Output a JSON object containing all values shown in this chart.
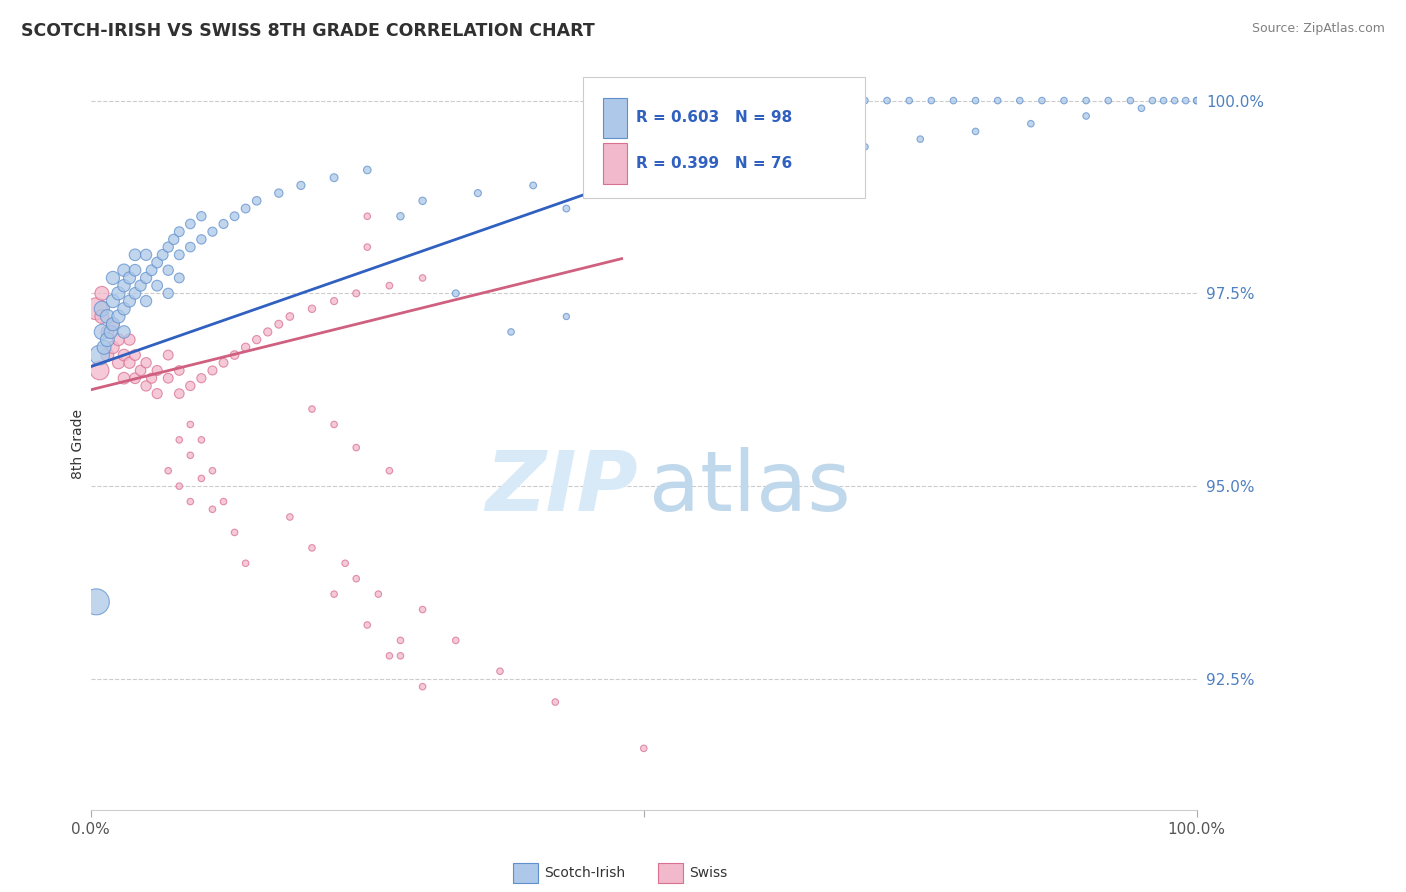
{
  "title": "SCOTCH-IRISH VS SWISS 8TH GRADE CORRELATION CHART",
  "source": "Source: ZipAtlas.com",
  "ylabel": "8th Grade",
  "xlim": [
    0.0,
    1.0
  ],
  "ylim": [
    0.908,
    1.003
  ],
  "yticks": [
    0.925,
    0.95,
    0.975,
    1.0
  ],
  "ytick_labels": [
    "92.5%",
    "95.0%",
    "97.5%",
    "100.0%"
  ],
  "scotch_irish_R": 0.603,
  "scotch_irish_N": 98,
  "swiss_R": 0.399,
  "swiss_N": 76,
  "scotch_irish_color": "#adc8e8",
  "swiss_color": "#f2b8cb",
  "scotch_irish_edge_color": "#6090cc",
  "swiss_edge_color": "#d87090",
  "scotch_irish_line_color": "#3060c0",
  "swiss_line_color": "#d06080",
  "background_color": "#ffffff",
  "grid_color": "#cccccc",
  "title_color": "#303030",
  "tick_color": "#5080c0",
  "source_color": "#808080",
  "legend_text_color": "#3060c0",
  "watermark_color1": "#d8eaf8",
  "watermark_color2": "#c0d8ec",
  "si_x": [
    0.005,
    0.008,
    0.01,
    0.01,
    0.012,
    0.015,
    0.015,
    0.018,
    0.02,
    0.02,
    0.02,
    0.025,
    0.025,
    0.03,
    0.03,
    0.03,
    0.03,
    0.035,
    0.035,
    0.04,
    0.04,
    0.04,
    0.045,
    0.05,
    0.05,
    0.05,
    0.055,
    0.06,
    0.06,
    0.065,
    0.07,
    0.07,
    0.07,
    0.075,
    0.08,
    0.08,
    0.08,
    0.09,
    0.09,
    0.1,
    0.1,
    0.11,
    0.12,
    0.13,
    0.14,
    0.15,
    0.17,
    0.19,
    0.22,
    0.25,
    0.28,
    0.33,
    0.38,
    0.43,
    0.3,
    0.35,
    0.4,
    0.5,
    0.55,
    0.6,
    0.65,
    0.7,
    0.75,
    0.8,
    0.85,
    0.9,
    0.95,
    0.97,
    0.99,
    1.0,
    0.5,
    0.52,
    0.54,
    0.56,
    0.58,
    0.6,
    0.62,
    0.64,
    0.66,
    0.68,
    0.7,
    0.72,
    0.74,
    0.76,
    0.78,
    0.8,
    0.82,
    0.84,
    0.86,
    0.88,
    0.9,
    0.92,
    0.94,
    0.96,
    0.98,
    1.0,
    0.43,
    0.46
  ],
  "si_y": [
    0.935,
    0.967,
    0.97,
    0.973,
    0.968,
    0.969,
    0.972,
    0.97,
    0.971,
    0.974,
    0.977,
    0.972,
    0.975,
    0.97,
    0.973,
    0.976,
    0.978,
    0.974,
    0.977,
    0.975,
    0.978,
    0.98,
    0.976,
    0.977,
    0.98,
    0.974,
    0.978,
    0.979,
    0.976,
    0.98,
    0.978,
    0.981,
    0.975,
    0.982,
    0.98,
    0.977,
    0.983,
    0.981,
    0.984,
    0.982,
    0.985,
    0.983,
    0.984,
    0.985,
    0.986,
    0.987,
    0.988,
    0.989,
    0.99,
    0.991,
    0.985,
    0.975,
    0.97,
    0.972,
    0.987,
    0.988,
    0.989,
    0.99,
    0.991,
    0.992,
    0.993,
    0.994,
    0.995,
    0.996,
    0.997,
    0.998,
    0.999,
    1.0,
    1.0,
    1.0,
    1.0,
    1.0,
    1.0,
    1.0,
    1.0,
    1.0,
    1.0,
    1.0,
    1.0,
    1.0,
    1.0,
    1.0,
    1.0,
    1.0,
    1.0,
    1.0,
    1.0,
    1.0,
    1.0,
    1.0,
    1.0,
    1.0,
    1.0,
    1.0,
    1.0,
    1.0,
    0.986,
    0.988
  ],
  "si_sizes": [
    350,
    200,
    120,
    120,
    100,
    100,
    100,
    90,
    90,
    90,
    90,
    90,
    90,
    80,
    80,
    80,
    80,
    75,
    75,
    70,
    70,
    70,
    65,
    65,
    65,
    65,
    60,
    60,
    60,
    60,
    55,
    55,
    55,
    55,
    50,
    50,
    50,
    48,
    48,
    45,
    45,
    43,
    42,
    40,
    40,
    38,
    36,
    34,
    32,
    30,
    28,
    25,
    22,
    20,
    28,
    26,
    24,
    22,
    22,
    22,
    22,
    22,
    22,
    22,
    22,
    22,
    22,
    22,
    22,
    22,
    22,
    22,
    22,
    22,
    22,
    22,
    22,
    22,
    22,
    22,
    22,
    22,
    22,
    22,
    22,
    22,
    22,
    22,
    22,
    22,
    22,
    22,
    22,
    22,
    22,
    22,
    24,
    24
  ],
  "sw_x": [
    0.005,
    0.008,
    0.01,
    0.01,
    0.015,
    0.015,
    0.02,
    0.02,
    0.025,
    0.025,
    0.03,
    0.03,
    0.035,
    0.035,
    0.04,
    0.04,
    0.045,
    0.05,
    0.05,
    0.055,
    0.06,
    0.06,
    0.07,
    0.07,
    0.08,
    0.08,
    0.09,
    0.1,
    0.11,
    0.12,
    0.13,
    0.14,
    0.15,
    0.16,
    0.17,
    0.18,
    0.2,
    0.22,
    0.24,
    0.27,
    0.3,
    0.25,
    0.25,
    0.09,
    0.1,
    0.11,
    0.12,
    0.13,
    0.14,
    0.08,
    0.09,
    0.1,
    0.11,
    0.07,
    0.08,
    0.09,
    0.2,
    0.22,
    0.24,
    0.27,
    0.18,
    0.2,
    0.24,
    0.3,
    0.33,
    0.37,
    0.42,
    0.22,
    0.25,
    0.28,
    0.3,
    0.23,
    0.26,
    0.28,
    0.5,
    0.27
  ],
  "sw_y": [
    0.973,
    0.965,
    0.975,
    0.972,
    0.97,
    0.967,
    0.971,
    0.968,
    0.969,
    0.966,
    0.967,
    0.964,
    0.969,
    0.966,
    0.967,
    0.964,
    0.965,
    0.966,
    0.963,
    0.964,
    0.965,
    0.962,
    0.967,
    0.964,
    0.965,
    0.962,
    0.963,
    0.964,
    0.965,
    0.966,
    0.967,
    0.968,
    0.969,
    0.97,
    0.971,
    0.972,
    0.973,
    0.974,
    0.975,
    0.976,
    0.977,
    0.981,
    0.985,
    0.958,
    0.956,
    0.952,
    0.948,
    0.944,
    0.94,
    0.956,
    0.954,
    0.951,
    0.947,
    0.952,
    0.95,
    0.948,
    0.96,
    0.958,
    0.955,
    0.952,
    0.946,
    0.942,
    0.938,
    0.934,
    0.93,
    0.926,
    0.922,
    0.936,
    0.932,
    0.928,
    0.924,
    0.94,
    0.936,
    0.93,
    0.916,
    0.928
  ],
  "sw_sizes": [
    250,
    180,
    100,
    100,
    85,
    85,
    80,
    80,
    75,
    75,
    70,
    70,
    65,
    65,
    60,
    60,
    58,
    55,
    55,
    53,
    52,
    52,
    50,
    50,
    48,
    48,
    45,
    43,
    42,
    40,
    38,
    36,
    35,
    34,
    32,
    30,
    28,
    26,
    25,
    23,
    22,
    22,
    22,
    22,
    22,
    22,
    22,
    22,
    22,
    22,
    22,
    22,
    22,
    22,
    22,
    22,
    22,
    22,
    22,
    22,
    22,
    22,
    22,
    22,
    22,
    22,
    22,
    22,
    22,
    22,
    22,
    22,
    22,
    22,
    22,
    22
  ],
  "line_si_x0": 0.0,
  "line_si_y0": 0.9655,
  "line_si_x1": 0.48,
  "line_si_y1": 0.9895,
  "line_sw_x0": 0.0,
  "line_sw_y0": 0.9625,
  "line_sw_x1": 0.48,
  "line_sw_y1": 0.9795
}
